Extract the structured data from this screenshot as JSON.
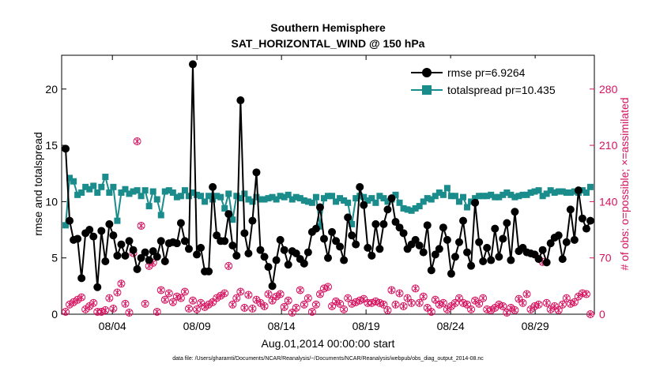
{
  "chart_data": {
    "type": "line",
    "title": "Southern Hemisphere",
    "subtitle": "SAT_HORIZONTAL_WIND @ 150 hPa",
    "xlabel": "Aug.01,2014 00:00:00 start",
    "ylabel_left": "rmse and totalspread",
    "ylabel_right": "# of obs: o=possible; ×=assimilated",
    "footnote": "data file: /Users/gharamti/Documents/NCAR/Reanalysis/~/Documents/NCAR/Reanalysis/webpub/obs_diag_output_2014-08.nc",
    "xlim": [
      0.0,
      31.5
    ],
    "ylim_left": [
      0,
      23
    ],
    "ylim_right": [
      0,
      322
    ],
    "x_ticks": [
      3,
      8,
      13,
      18,
      23,
      28
    ],
    "x_tick_labels": [
      "08/04",
      "08/09",
      "08/14",
      "08/19",
      "08/24",
      "08/29"
    ],
    "y_ticks_left": [
      0,
      5,
      10,
      15,
      20
    ],
    "y_tick_labels_left": [
      "0",
      "5",
      "10",
      "15",
      "20"
    ],
    "y_ticks_right": [
      0,
      70,
      140,
      210,
      280
    ],
    "y_tick_labels_right": [
      "0",
      "70",
      "140",
      "210",
      "280"
    ],
    "colors": {
      "rmse": "#000000",
      "spread": "#1a8c8c",
      "obs": "#d6125f",
      "axis": "#000000"
    },
    "series": [
      {
        "name": "rmse",
        "legend": "rmse pr=6.9264",
        "axis": "left",
        "values": [
          14.7,
          8.3,
          6.6,
          6.7,
          3.2,
          7.2,
          7.5,
          6.9,
          2.4,
          7.4,
          4.7,
          8.0,
          7.0,
          5.2,
          6.2,
          5.2,
          6.5,
          5.7,
          4.0,
          5.0,
          5.5,
          4.8,
          5.6,
          5.1,
          6.5,
          4.7,
          6.3,
          6.4,
          6.3,
          8.1,
          6.5,
          5.8,
          22.2,
          5.3,
          5.9,
          3.8,
          3.8,
          11.3,
          7.0,
          6.5,
          6.5,
          8.9,
          6.1,
          5.2,
          19.0,
          7.2,
          5.4,
          8.3,
          12.6,
          5.7,
          5.1,
          4.2,
          2.5,
          4.8,
          6.6,
          5.7,
          4.4,
          5.6,
          5.4,
          4.9,
          4.5,
          5.5,
          7.3,
          7.6,
          9.5,
          6.7,
          5.0,
          7.3,
          6.5,
          6.0,
          4.8,
          8.6,
          7.0,
          6.2,
          11.3,
          9.7,
          5.9,
          5.2,
          8.0,
          5.8,
          8.0,
          9.3,
          10.3,
          8.2,
          7.7,
          7.2,
          5.8,
          6.2,
          6.6,
          6.1,
          5.5,
          7.9,
          3.9,
          5.3,
          5.8,
          7.7,
          6.6,
          3.6,
          5.1,
          6.4,
          8.3,
          5.5,
          4.3,
          9.9,
          6.4,
          4.7,
          5.9,
          4.8,
          7.6,
          5.1,
          6.7,
          8.1,
          4.8,
          9.1,
          5.6,
          5.9,
          5.5,
          5.4,
          5.3,
          4.9,
          5.7,
          4.6,
          6.3,
          6.8,
          7.0,
          4.9,
          6.4,
          9.3,
          6.6,
          11.0,
          8.5,
          7.6,
          8.3
        ]
      },
      {
        "name": "totalspread",
        "legend": "totalspread pr=10.435",
        "axis": "left",
        "values": [
          7.9,
          12.1,
          11.8,
          10.6,
          10.8,
          11.3,
          11.1,
          11.4,
          10.8,
          11.3,
          12.2,
          10.8,
          11.3,
          8.3,
          10.8,
          11.1,
          10.7,
          10.9,
          11.0,
          10.5,
          11.0,
          9.6,
          10.9,
          10.2,
          8.8,
          10.9,
          11.0,
          10.8,
          10.4,
          10.5,
          11.0,
          10.5,
          10.8,
          10.6,
          10.5,
          10.0,
          10.5,
          10.2,
          10.5,
          10.4,
          9.4,
          10.7,
          8.4,
          10.5,
          10.3,
          10.7,
          10.2,
          10.0,
          10.4,
          10.2,
          10.2,
          10.3,
          10.4,
          10.2,
          10.5,
          10.4,
          10.6,
          10.2,
          10.4,
          10.3,
          10.1,
          10.0,
          9.9,
          10.4,
          7.8,
          10.3,
          10.5,
          10.5,
          10.0,
          10.3,
          10.1,
          9.9,
          8.0,
          10.3,
          10.5,
          10.4,
          10.1,
          10.3,
          9.9,
          10.5,
          10.3,
          10.0,
          10.2,
          10.6,
          9.9,
          9.4,
          9.3,
          9.2,
          9.4,
          9.6,
          10.0,
          10.3,
          10.2,
          10.5,
          10.8,
          10.6,
          11.2,
          10.5,
          10.5,
          10.0,
          10.4,
          9.5,
          10.0,
          10.3,
          10.5,
          10.5,
          10.5,
          10.6,
          10.4,
          10.4,
          10.6,
          10.8,
          10.6,
          10.4,
          10.5,
          10.6,
          10.6,
          10.8,
          10.9,
          11.0,
          10.5,
          10.7,
          11.0,
          10.8,
          10.9,
          10.9,
          10.8,
          10.8,
          10.9,
          10.8,
          11.0,
          10.8,
          11.3
        ]
      },
      {
        "name": "obs_possible",
        "legend": "",
        "axis": "right",
        "values": [
          3,
          12,
          15,
          18,
          21,
          6,
          10,
          14,
          3,
          3,
          5,
          20,
          7,
          27,
          38,
          13,
          2,
          76,
          215,
          110,
          13,
          60,
          64,
          3,
          30,
          18,
          26,
          15,
          22,
          20,
          28,
          7,
          17,
          6,
          14,
          9,
          12,
          15,
          20,
          23,
          26,
          60,
          12,
          20,
          28,
          8,
          24,
          7,
          18,
          14,
          10,
          25,
          17,
          22,
          25,
          9,
          17,
          2,
          8,
          30,
          12,
          20,
          3,
          12,
          25,
          32,
          34,
          10,
          16,
          13,
          6,
          20,
          13,
          15,
          17,
          19,
          14,
          14,
          16,
          14,
          12,
          5,
          30,
          12,
          26,
          10,
          20,
          14,
          32,
          14,
          22,
          8,
          3,
          18,
          12,
          14,
          6,
          10,
          14,
          20,
          14,
          12,
          6,
          17,
          13,
          20,
          6,
          5,
          8,
          12,
          10,
          2,
          8,
          5,
          19,
          14,
          25,
          6,
          10,
          12,
          65,
          14,
          6,
          10,
          5,
          12,
          20,
          13,
          15,
          22,
          26,
          25,
          0
        ]
      }
    ]
  }
}
